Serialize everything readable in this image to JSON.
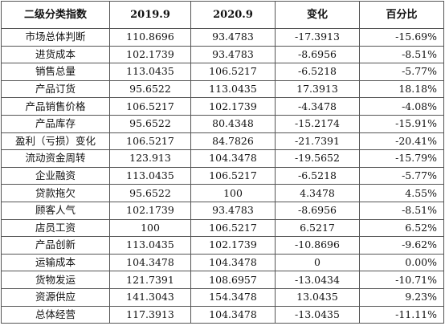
{
  "table": {
    "headers": [
      "二级分类指数",
      "2019.9",
      "2020.9",
      "变化",
      "百分比"
    ],
    "rows": [
      [
        "市场总体判断",
        "110.8696",
        "93.4783",
        "-17.3913",
        "-15.69%"
      ],
      [
        "进货成本",
        "102.1739",
        "93.4783",
        "-8.6956",
        "-8.51%"
      ],
      [
        "销售总量",
        "113.0435",
        "106.5217",
        "-6.5218",
        "-5.77%"
      ],
      [
        "产品订货",
        "95.6522",
        "113.0435",
        "17.3913",
        "18.18%"
      ],
      [
        "产品销售价格",
        "106.5217",
        "102.1739",
        "-4.3478",
        "-4.08%"
      ],
      [
        "产品库存",
        "95.6522",
        "80.4348",
        "-15.2174",
        "-15.91%"
      ],
      [
        "盈利（亏损）变化",
        "106.5217",
        "84.7826",
        "-21.7391",
        "-20.41%"
      ],
      [
        "流动资金周转",
        "123.913",
        "104.3478",
        "-19.5652",
        "-15.79%"
      ],
      [
        "企业融资",
        "113.0435",
        "106.5217",
        "-6.5218",
        "-5.77%"
      ],
      [
        "贷款拖欠",
        "95.6522",
        "100",
        "4.3478",
        "4.55%"
      ],
      [
        "顾客人气",
        "102.1739",
        "93.4783",
        "-8.6956",
        "-8.51%"
      ],
      [
        "店员工资",
        "100",
        "106.5217",
        "6.5217",
        "6.52%"
      ],
      [
        "产品创新",
        "113.0435",
        "102.1739",
        "-10.8696",
        "-9.62%"
      ],
      [
        "运输成本",
        "104.3478",
        "104.3478",
        "0",
        "0.00%"
      ],
      [
        "货物发运",
        "121.7391",
        "108.6957",
        "-13.0434",
        "-10.71%"
      ],
      [
        "资源供应",
        "141.3043",
        "154.3478",
        "13.0435",
        "9.23%"
      ],
      [
        "总体经营",
        "117.3913",
        "104.3478",
        "-13.0435",
        "-11.11%"
      ]
    ]
  }
}
